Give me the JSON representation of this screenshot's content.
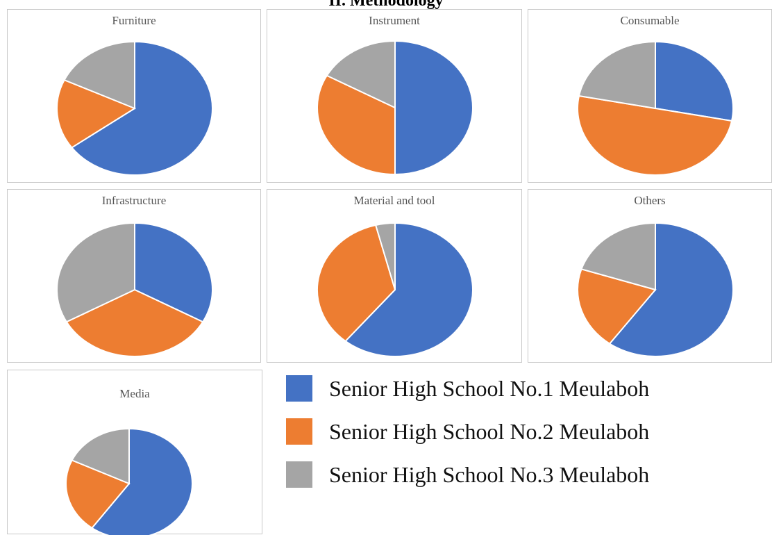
{
  "heading": "II.  Methodology",
  "colors": {
    "school1": "#4472C4",
    "school2": "#ED7D31",
    "school3": "#A5A5A5"
  },
  "legend": [
    {
      "label": "Senior High School No.1 Meulaboh",
      "color": "#4472C4"
    },
    {
      "label": "Senior High School No.2 Meulaboh",
      "color": "#ED7D31"
    },
    {
      "label": "Senior High School No.3 Meulaboh",
      "color": "#A5A5A5"
    }
  ],
  "chart_data": [
    {
      "type": "pie",
      "title": "Furniture",
      "categories": [
        "Senior High School No.1 Meulaboh",
        "Senior High School No.2 Meulaboh",
        "Senior High School No.3 Meulaboh"
      ],
      "values": [
        65,
        17,
        18
      ]
    },
    {
      "type": "pie",
      "title": "Instrument",
      "categories": [
        "Senior High School No.1 Meulaboh",
        "Senior High School No.2 Meulaboh",
        "Senior High School No.3 Meulaboh"
      ],
      "values": [
        50,
        33,
        17
      ]
    },
    {
      "type": "pie",
      "title": "Consumable",
      "categories": [
        "Senior High School No.1 Meulaboh",
        "Senior High School No.2 Meulaboh",
        "Senior High School No.3 Meulaboh"
      ],
      "values": [
        28,
        50,
        22
      ]
    },
    {
      "type": "pie",
      "title": "Infrastructure",
      "categories": [
        "Senior High School No.1 Meulaboh",
        "Senior High School No.2 Meulaboh",
        "Senior High School No.3 Meulaboh"
      ],
      "values": [
        33,
        34,
        33
      ]
    },
    {
      "type": "pie",
      "title": "Material and tool",
      "categories": [
        "Senior High School No.1 Meulaboh",
        "Senior High School No.2 Meulaboh",
        "Senior High School No.3 Meulaboh"
      ],
      "values": [
        61,
        35,
        4
      ]
    },
    {
      "type": "pie",
      "title": "Others",
      "categories": [
        "Senior High School No.1 Meulaboh",
        "Senior High School No.2 Meulaboh",
        "Senior High School No.3 Meulaboh"
      ],
      "values": [
        60,
        20,
        20
      ]
    },
    {
      "type": "pie",
      "title": "Media",
      "categories": [
        "Senior High School No.1 Meulaboh",
        "Senior High School No.2 Meulaboh",
        "Senior High School No.3 Meulaboh"
      ],
      "values": [
        60,
        22,
        18
      ]
    }
  ]
}
